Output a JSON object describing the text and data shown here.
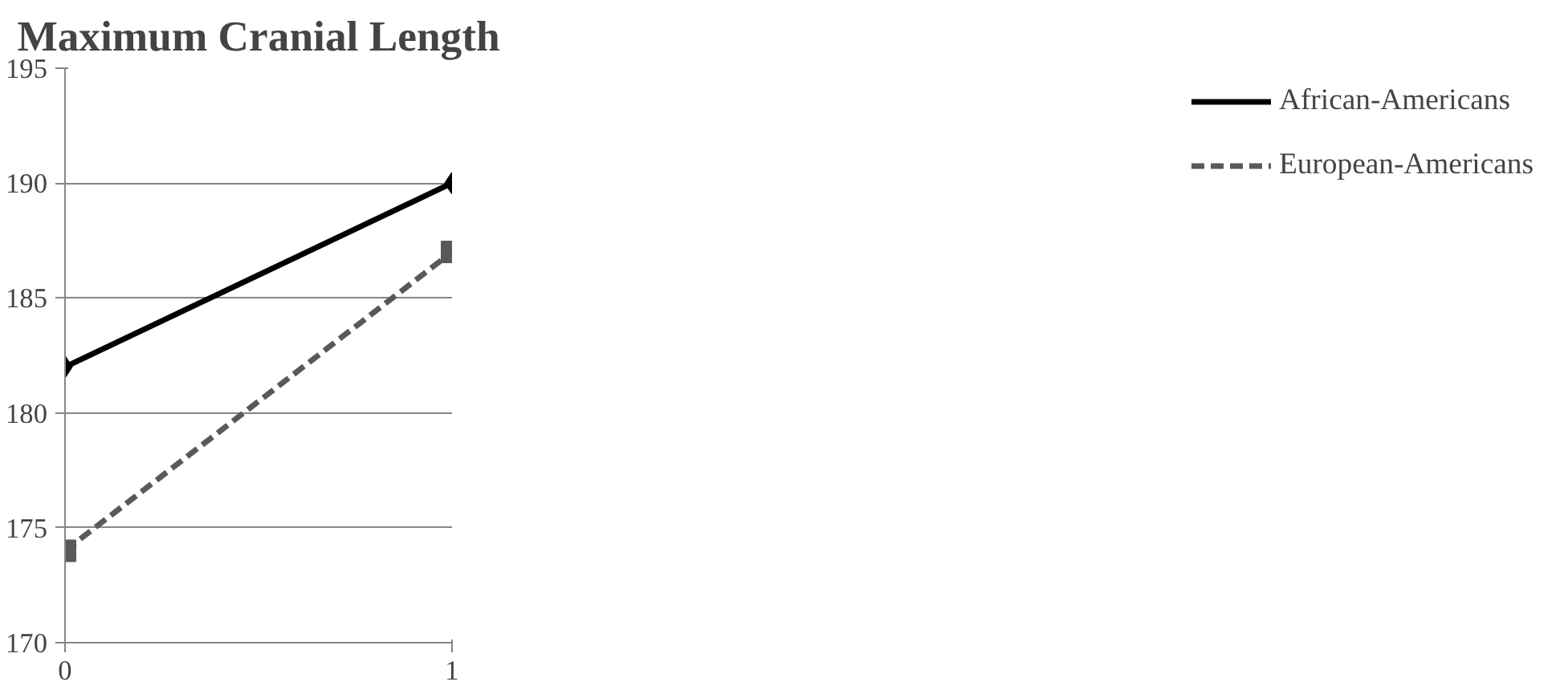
{
  "chart_data": {
    "type": "line",
    "title": "Maximum Cranial Length",
    "x": [
      0,
      1
    ],
    "xlim": [
      0,
      1
    ],
    "xticks": [
      0,
      1
    ],
    "ylim": [
      170,
      195
    ],
    "yticks": [
      170,
      175,
      180,
      185,
      190,
      195
    ],
    "grid": "y",
    "legend": "right",
    "series": [
      {
        "name": "African-Americans",
        "color": "#000000",
        "values": [
          182,
          190
        ],
        "marker": "diamond",
        "line_style": "solid"
      },
      {
        "name": "European-Americans",
        "color": "#595959",
        "values": [
          174,
          187
        ],
        "marker": "square",
        "line_style": "dashed"
      }
    ]
  }
}
